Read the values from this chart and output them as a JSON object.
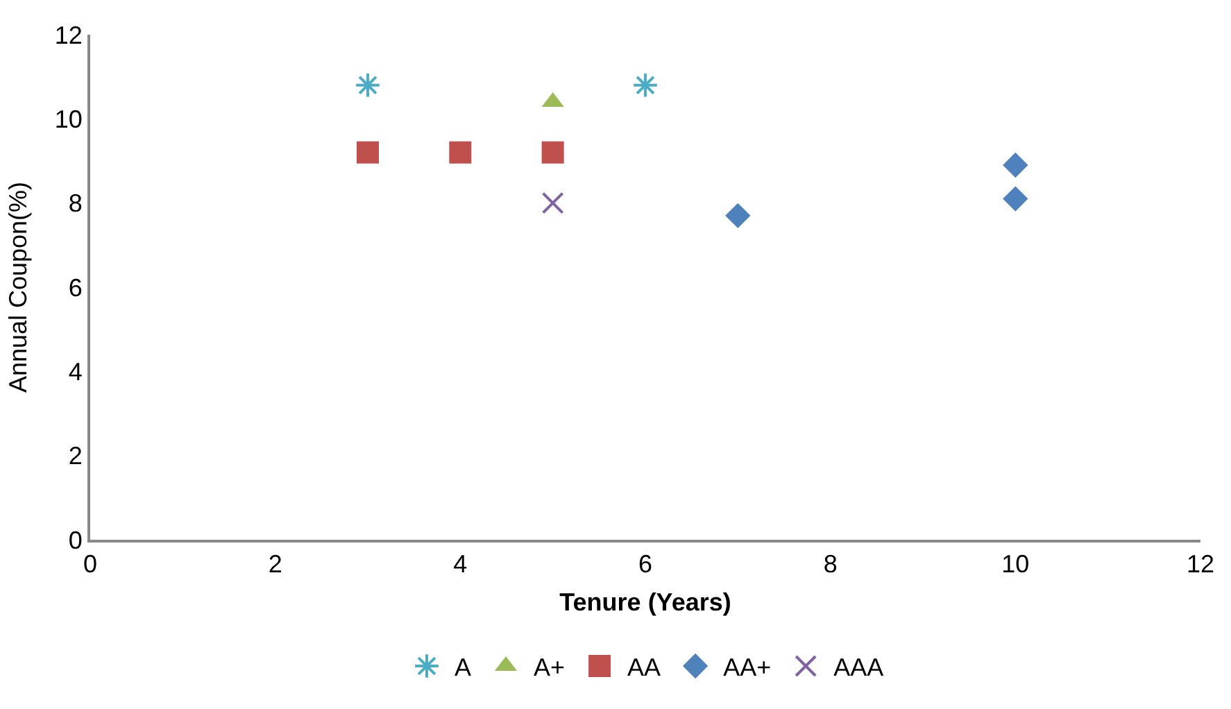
{
  "chart_data": {
    "type": "scatter",
    "xlabel": "Tenure (Years)",
    "ylabel": "Annual Coupon(%)",
    "xlim": [
      0,
      12
    ],
    "xticks": [
      0,
      2,
      4,
      6,
      8,
      10,
      12
    ],
    "ylim": [
      0,
      12
    ],
    "yticks": [
      0,
      2,
      4,
      6,
      8,
      10,
      12
    ],
    "legend": "bottom",
    "series": [
      {
        "name": "A",
        "color": "#4bacc6",
        "marker": "cross",
        "x": [
          3,
          6
        ],
        "values": [
          10.8,
          10.8
        ]
      },
      {
        "name": "A+",
        "color": "#9bbb59",
        "marker": "triangle",
        "x": [
          5
        ],
        "values": [
          10.4
        ]
      },
      {
        "name": "AA",
        "color": "#c0504d",
        "marker": "square",
        "x": [
          3,
          4,
          5
        ],
        "values": [
          9.2,
          9.2,
          9.2
        ]
      },
      {
        "name": "AA+",
        "color": "#4f81bd",
        "marker": "diamond",
        "x": [
          7,
          10,
          10
        ],
        "values": [
          7.7,
          8.9,
          8.1
        ]
      },
      {
        "name": "AAA",
        "color": "#8064a2",
        "marker": "cross",
        "x": [
          5
        ],
        "values": [
          8.0
        ]
      }
    ]
  }
}
